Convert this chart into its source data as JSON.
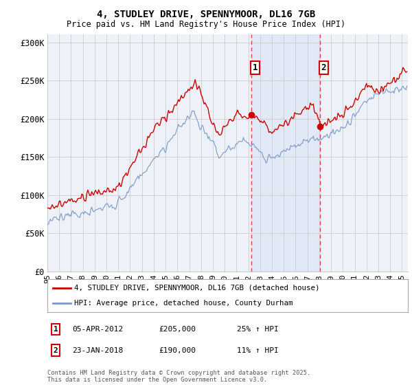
{
  "title": "4, STUDLEY DRIVE, SPENNYMOOR, DL16 7GB",
  "subtitle": "Price paid vs. HM Land Registry's House Price Index (HPI)",
  "ylabel_ticks": [
    "£0",
    "£50K",
    "£100K",
    "£150K",
    "£200K",
    "£250K",
    "£300K"
  ],
  "ytick_values": [
    0,
    50000,
    100000,
    150000,
    200000,
    250000,
    300000
  ],
  "ylim": [
    0,
    310000
  ],
  "xlim_start": 1995.0,
  "xlim_end": 2025.5,
  "sale1_date": 2012.27,
  "sale1_price": 205000,
  "sale1_label": "1",
  "sale2_date": 2018.08,
  "sale2_price": 190000,
  "sale2_label": "2",
  "red_color": "#cc0000",
  "blue_color": "#7799cc",
  "vline_color": "#dd4444",
  "background_color": "#ffffff",
  "plot_bg_color": "#eef2f8",
  "grid_color": "#cccccc",
  "legend1": "4, STUDLEY DRIVE, SPENNYMOOR, DL16 7GB (detached house)",
  "legend2": "HPI: Average price, detached house, County Durham",
  "footnote": "Contains HM Land Registry data © Crown copyright and database right 2025.\nThis data is licensed under the Open Government Licence v3.0.",
  "xtick_labels": [
    "95",
    "96",
    "97",
    "98",
    "99",
    "00",
    "01",
    "02",
    "03",
    "04",
    "05",
    "06",
    "07",
    "08",
    "09",
    "10",
    "11",
    "12",
    "13",
    "14",
    "15",
    "16",
    "17",
    "18",
    "19",
    "20",
    "21",
    "22",
    "23",
    "24",
    "25"
  ],
  "xticks": [
    1995,
    1996,
    1997,
    1998,
    1999,
    2000,
    2001,
    2002,
    2003,
    2004,
    2005,
    2006,
    2007,
    2008,
    2009,
    2010,
    2011,
    2012,
    2013,
    2014,
    2015,
    2016,
    2017,
    2018,
    2019,
    2020,
    2021,
    2022,
    2023,
    2024,
    2025
  ]
}
